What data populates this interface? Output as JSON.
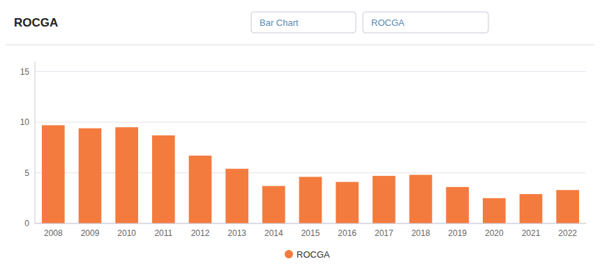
{
  "chart_data": {
    "type": "bar",
    "title": "ROCGA",
    "annotations": [
      "Bar Chart",
      "ROCGA"
    ],
    "categories": [
      "2008",
      "2009",
      "2010",
      "2011",
      "2012",
      "2013",
      "2014",
      "2015",
      "2016",
      "2017",
      "2018",
      "2019",
      "2020",
      "2021",
      "2022"
    ],
    "series": [
      {
        "name": "ROCGA",
        "color": "#f47b3e",
        "values": [
          9.7,
          9.4,
          9.5,
          8.7,
          6.7,
          5.4,
          3.7,
          4.6,
          4.1,
          4.7,
          4.8,
          3.6,
          2.5,
          2.9,
          3.3
        ]
      }
    ],
    "ylim": [
      0,
      16
    ],
    "yticks": [
      0,
      5,
      10,
      15
    ],
    "grid": true,
    "legend": "bottom"
  }
}
